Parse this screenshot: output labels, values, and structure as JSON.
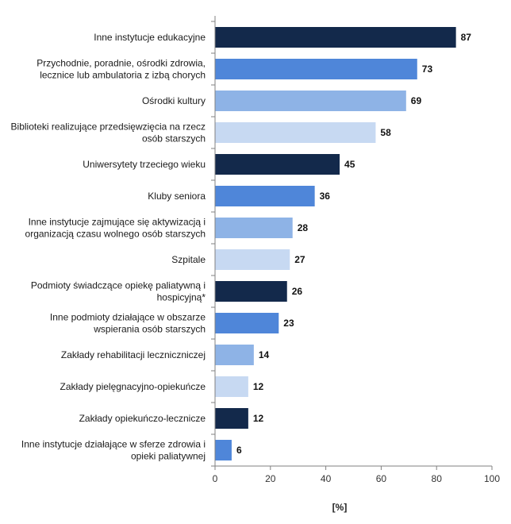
{
  "chart_data": {
    "type": "bar",
    "orientation": "horizontal",
    "categories": [
      "Inne instytucje edukacyjne",
      "Przychodnie, poradnie, ośrodki zdrowia,|lecznice lub ambulatoria z izbą chorych",
      "Ośrodki kultury",
      "Biblioteki realizujące przedsięwzięcia na rzecz|osób starszych",
      "Uniwersytety trzeciego wieku",
      "Kluby seniora",
      "Inne instytucje zajmujące się aktywizacją i|organizacją czasu wolnego osób starszych",
      "Szpitale",
      "Podmioty świadczące opiekę paliatywną i|hospicyjną*",
      "Inne podmioty działające w obszarze|wspierania osób starszych",
      "Zakłady rehabilitacji leczniczniczej",
      "Zakłady pielęgnacyjno-opiekuńcze",
      "Zakłady opiekuńczo-lecznicze",
      "Inne instytucje działające w sferze zdrowia i|opieki paliatywnej"
    ],
    "values": [
      87,
      73,
      69,
      58,
      45,
      36,
      28,
      27,
      26,
      23,
      14,
      12,
      12,
      6
    ],
    "bar_colors": [
      "#13294b",
      "#4f86d9",
      "#8eb3e6",
      "#c7d9f2"
    ],
    "xlim": [
      0,
      100
    ],
    "xticks": [
      0,
      20,
      40,
      60,
      80,
      100
    ],
    "xlabel": "[%]",
    "title": "",
    "grid": false,
    "legend": "none"
  }
}
